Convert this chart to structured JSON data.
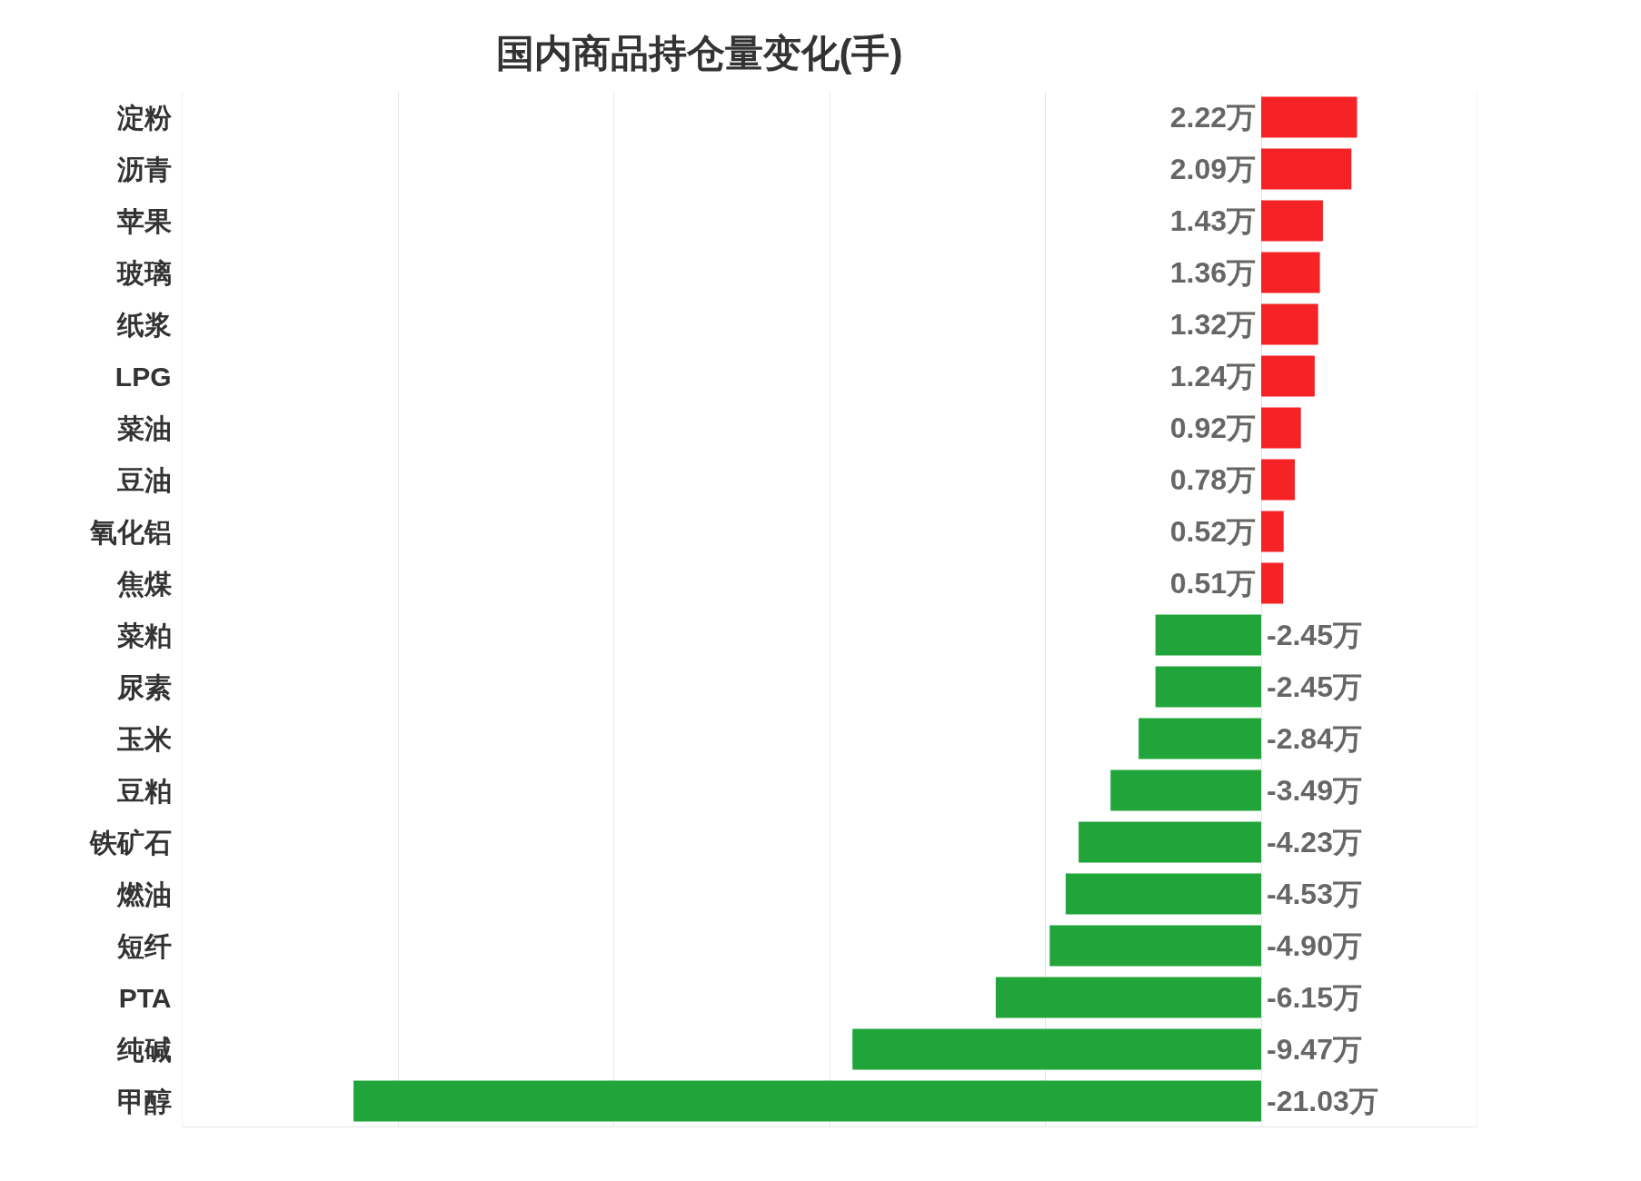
{
  "chart_data": {
    "type": "bar",
    "orientation": "horizontal",
    "title": "国内商品持仓量变化(手)",
    "categories": [
      "淀粉",
      "沥青",
      "苹果",
      "玻璃",
      "纸浆",
      "LPG",
      "菜油",
      "豆油",
      "氧化铝",
      "焦煤",
      "菜粕",
      "尿素",
      "玉米",
      "豆粕",
      "铁矿石",
      "燃油",
      "短纤",
      "PTA",
      "纯碱",
      "甲醇"
    ],
    "values": [
      2.22,
      2.09,
      1.43,
      1.36,
      1.32,
      1.24,
      0.92,
      0.78,
      0.52,
      0.51,
      -2.45,
      -2.45,
      -2.84,
      -3.49,
      -4.23,
      -4.53,
      -4.9,
      -6.15,
      -9.47,
      -21.03
    ],
    "value_labels": [
      "2.22万",
      "2.09万",
      "1.43万",
      "1.36万",
      "1.32万",
      "1.24万",
      "0.92万",
      "0.78万",
      "0.52万",
      "0.51万",
      "-2.45万",
      "-2.45万",
      "-2.84万",
      "-3.49万",
      "-4.23万",
      "-4.53万",
      "-4.90万",
      "-6.15万",
      "-9.47万",
      "-21.03万"
    ],
    "colors": [
      "#f52226",
      "#f52226",
      "#f52226",
      "#f52226",
      "#f52226",
      "#f52226",
      "#f52226",
      "#f52226",
      "#f52226",
      "#f52226",
      "#21a53a",
      "#21a53a",
      "#21a53a",
      "#21a53a",
      "#21a53a",
      "#21a53a",
      "#21a53a",
      "#21a53a",
      "#21a53a",
      "#21a53a"
    ],
    "xlim": [
      -25,
      5
    ],
    "xticks": [
      {
        "value": -20,
        "label": null
      },
      {
        "value": -15,
        "label": null
      },
      {
        "value": -10,
        "label": null
      },
      {
        "value": -5,
        "label": null
      },
      {
        "value": 0,
        "label": null
      }
    ],
    "grid": "x",
    "tick_labels": "y"
  }
}
